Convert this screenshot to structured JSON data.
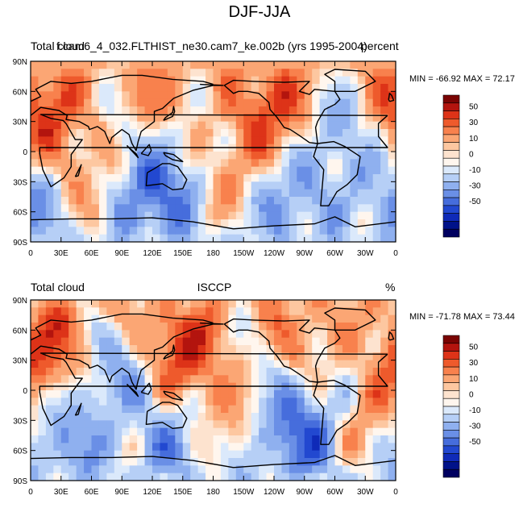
{
  "figure": {
    "title": "DJF-JJA"
  },
  "panels": [
    {
      "left_title": "Total cloud",
      "center_title": "f.cam6_4_032.FLTHIST_ne30.cam7_ke.002b (yrs 1995-2004)",
      "right_title": "percent",
      "stats": "MIN = -66.92 MAX =  72.17"
    },
    {
      "left_title": "Total cloud",
      "center_title": "ISCCP",
      "right_title": "%",
      "stats": "MIN = -71.78 MAX =  73.44"
    }
  ],
  "axes": {
    "lat_labels": [
      "90N",
      "60N",
      "30N",
      "0",
      "30S",
      "60S",
      "90S"
    ],
    "lon_labels": [
      "0",
      "30E",
      "60E",
      "90E",
      "120E",
      "150E",
      "180",
      "150W",
      "120W",
      "90W",
      "60W",
      "30W",
      "0"
    ]
  },
  "colorbar": {
    "labels": [
      "50",
      "30",
      "10",
      "0",
      "-10",
      "-30",
      "-50"
    ],
    "colors": [
      "#7a0403",
      "#b3140e",
      "#dd3318",
      "#ee5a2c",
      "#f8814d",
      "#fba674",
      "#fdc7a0",
      "#fde3cf",
      "#fff6ee",
      "#dbe9fb",
      "#b6cff6",
      "#8fb0ef",
      "#6a8fe6",
      "#466ddc",
      "#2248d0",
      "#0f2ab8",
      "#001289",
      "#000060"
    ]
  }
}
